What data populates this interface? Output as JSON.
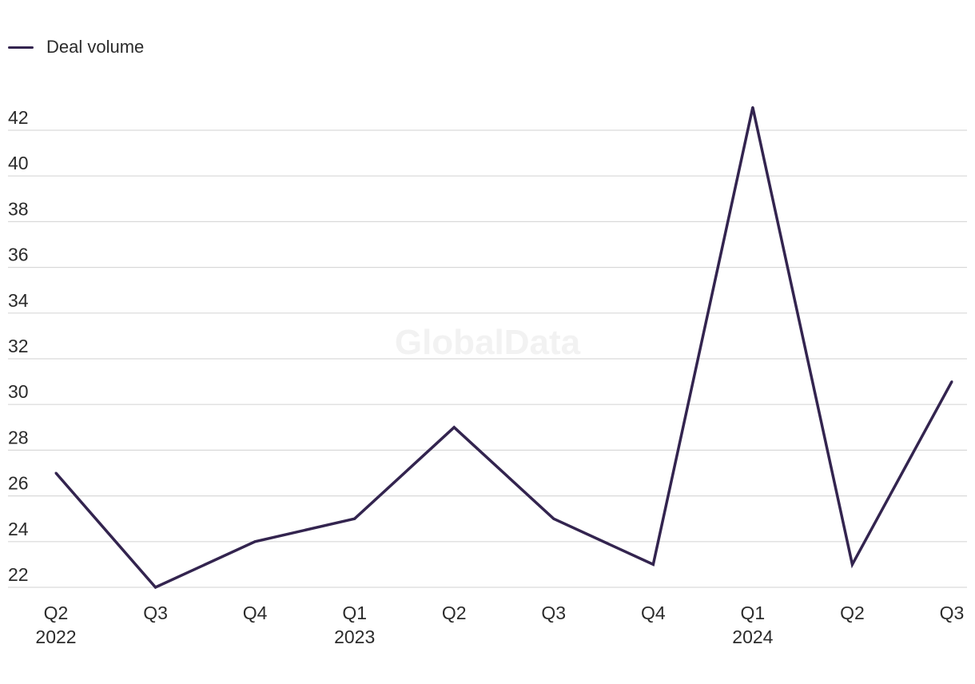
{
  "legend": {
    "label": "Deal volume"
  },
  "watermark": "GlobalData",
  "colors": {
    "line": "#33244f",
    "grid": "#d9d9d9",
    "text": "#2b2b2b"
  },
  "chart_data": {
    "type": "line",
    "title": "",
    "xlabel": "",
    "ylabel": "",
    "categories": [
      "Q2 2022",
      "Q3 2022",
      "Q4 2022",
      "Q1 2023",
      "Q2 2023",
      "Q3 2023",
      "Q4 2023",
      "Q1 2024",
      "Q2 2024",
      "Q3 2024"
    ],
    "x_tick_labels": [
      {
        "quarter": "Q2",
        "year": "2022"
      },
      {
        "quarter": "Q3",
        "year": ""
      },
      {
        "quarter": "Q4",
        "year": ""
      },
      {
        "quarter": "Q1",
        "year": "2023"
      },
      {
        "quarter": "Q2",
        "year": ""
      },
      {
        "quarter": "Q3",
        "year": ""
      },
      {
        "quarter": "Q4",
        "year": ""
      },
      {
        "quarter": "Q1",
        "year": "2024"
      },
      {
        "quarter": "Q2",
        "year": ""
      },
      {
        "quarter": "Q3",
        "year": ""
      }
    ],
    "series": [
      {
        "name": "Deal volume",
        "values": [
          27,
          22,
          24,
          25,
          29,
          25,
          23,
          43,
          23,
          31
        ]
      }
    ],
    "ylim": [
      22,
      43
    ],
    "y_ticks": [
      22,
      24,
      26,
      28,
      30,
      32,
      34,
      36,
      38,
      40,
      42
    ],
    "grid": true,
    "legend_position": "top-left"
  }
}
